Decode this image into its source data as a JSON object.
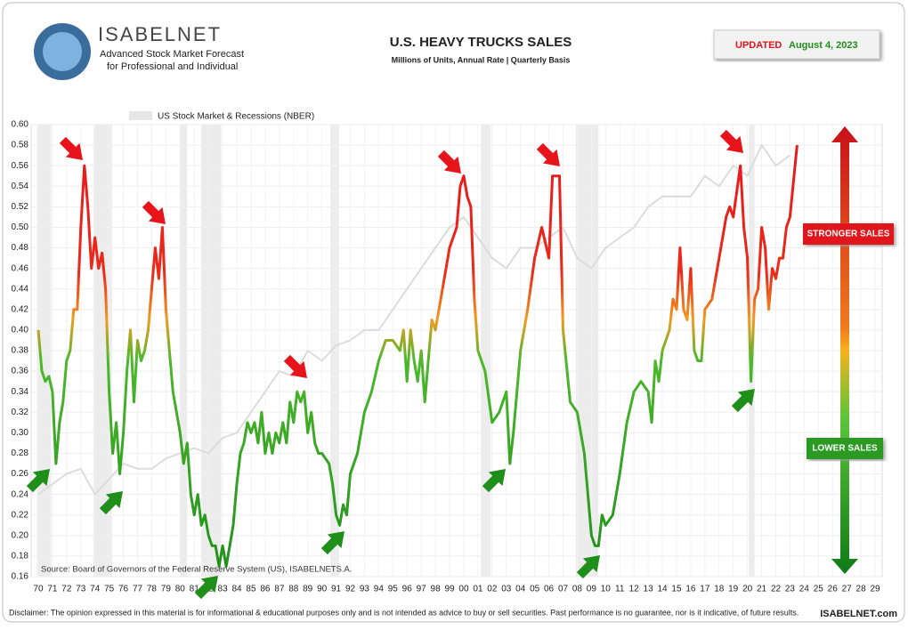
{
  "header": {
    "brand": "ISABELNET",
    "tagline1": "Advanced Stock Market Forecast",
    "tagline2": "for Professional and Individual",
    "updated_label": "UPDATED",
    "updated_date": "August 4, 2023"
  },
  "chart_data": {
    "type": "line",
    "title": "U.S. HEAVY TRUCKS SALES",
    "subtitle": "Millions of Units, Annual Rate | Quarterly Basis",
    "xlim": [
      1969.5,
      2029.5
    ],
    "ylim": [
      0.16,
      0.6
    ],
    "grid": true,
    "yticks": [
      0.16,
      0.18,
      {
        "value": 0.2,
        "label": "0.20"
      },
      0.22,
      0.24,
      0.26,
      0.28,
      {
        "value": 0.3,
        "label": "0.30"
      },
      0.32,
      0.34,
      0.36,
      0.38,
      {
        "value": 0.4,
        "label": "0.40"
      },
      0.42,
      0.44,
      0.46,
      0.48,
      {
        "value": 0.5,
        "label": "0.50"
      },
      0.52,
      0.54,
      0.56,
      0.58,
      {
        "value": 0.6,
        "label": "0.60"
      }
    ],
    "xticks": [
      {
        "value": 1970,
        "label": "70"
      },
      {
        "value": 1971,
        "label": "71"
      },
      {
        "value": 1972,
        "label": "72"
      },
      {
        "value": 1973,
        "label": "73"
      },
      {
        "value": 1974,
        "label": "74"
      },
      {
        "value": 1975,
        "label": "75"
      },
      {
        "value": 1976,
        "label": "76"
      },
      {
        "value": 1977,
        "label": "77"
      },
      {
        "value": 1978,
        "label": "78"
      },
      {
        "value": 1979,
        "label": "79"
      },
      {
        "value": 1980,
        "label": "80"
      },
      {
        "value": 1981,
        "label": "81"
      },
      {
        "value": 1982,
        "label": "82"
      },
      {
        "value": 1983,
        "label": "83"
      },
      {
        "value": 1984,
        "label": "84"
      },
      {
        "value": 1985,
        "label": "85"
      },
      {
        "value": 1986,
        "label": "86"
      },
      {
        "value": 1987,
        "label": "87"
      },
      {
        "value": 1988,
        "label": "88"
      },
      {
        "value": 1989,
        "label": "89"
      },
      {
        "value": 1990,
        "label": "90"
      },
      {
        "value": 1991,
        "label": "91"
      },
      {
        "value": 1992,
        "label": "92"
      },
      {
        "value": 1993,
        "label": "93"
      },
      {
        "value": 1994,
        "label": "94"
      },
      {
        "value": 1995,
        "label": "95"
      },
      {
        "value": 1996,
        "label": "96"
      },
      {
        "value": 1997,
        "label": "97"
      },
      {
        "value": 1998,
        "label": "98"
      },
      {
        "value": 1999,
        "label": "99"
      },
      {
        "value": 2000,
        "label": "00"
      },
      {
        "value": 2001,
        "label": "01"
      },
      {
        "value": 2002,
        "label": "02"
      },
      {
        "value": 2003,
        "label": "03"
      },
      {
        "value": 2004,
        "label": "04"
      },
      {
        "value": 2005,
        "label": "05"
      },
      {
        "value": 2006,
        "label": "06"
      },
      {
        "value": 2007,
        "label": "07"
      },
      {
        "value": 2008,
        "label": "08"
      },
      {
        "value": 2009,
        "label": "09"
      },
      {
        "value": 2010,
        "label": "10"
      },
      {
        "value": 2011,
        "label": "11"
      },
      {
        "value": 2012,
        "label": "12"
      },
      {
        "value": 2013,
        "label": "13"
      },
      {
        "value": 2014,
        "label": "14"
      },
      {
        "value": 2015,
        "label": "15"
      },
      {
        "value": 2016,
        "label": "16"
      },
      {
        "value": 2017,
        "label": "17"
      },
      {
        "value": 2018,
        "label": "18"
      },
      {
        "value": 2019,
        "label": "19"
      },
      {
        "value": 2020,
        "label": "20"
      },
      {
        "value": 2021,
        "label": "21"
      },
      {
        "value": 2022,
        "label": "22"
      },
      {
        "value": 2023,
        "label": "23"
      },
      {
        "value": 2024,
        "label": "24"
      },
      {
        "value": 2025,
        "label": "25"
      },
      {
        "value": 2026,
        "label": "26"
      },
      {
        "value": 2027,
        "label": "27"
      },
      {
        "value": 2028,
        "label": "28"
      },
      {
        "value": 2029,
        "label": "29"
      }
    ],
    "recessions": [
      [
        1969.9,
        1970.9
      ],
      [
        1973.9,
        1975.2
      ],
      [
        1980.0,
        1980.5
      ],
      [
        1981.5,
        1982.9
      ],
      [
        1990.6,
        1991.2
      ],
      [
        2001.2,
        2001.9
      ],
      [
        2007.9,
        2009.5
      ],
      [
        2020.1,
        2020.5
      ]
    ],
    "recession_color": "#ececec",
    "series": [
      {
        "color": "gradient",
        "x": [
          1970,
          1970.25,
          1970.5,
          1970.75,
          1971,
          1971.25,
          1971.5,
          1971.75,
          1972,
          1972.25,
          1972.5,
          1972.75,
          1973,
          1973.25,
          1973.5,
          1973.75,
          1974,
          1974.25,
          1974.5,
          1974.75,
          1975,
          1975.25,
          1975.5,
          1975.75,
          1976,
          1976.25,
          1976.5,
          1976.75,
          1977,
          1977.25,
          1977.5,
          1977.75,
          1978,
          1978.25,
          1978.5,
          1978.75,
          1979,
          1979.25,
          1979.5,
          1979.75,
          1980,
          1980.25,
          1980.5,
          1980.75,
          1981,
          1981.25,
          1981.5,
          1981.75,
          1982,
          1982.25,
          1982.5,
          1982.75,
          1983,
          1983.25,
          1983.5,
          1983.75,
          1984,
          1984.25,
          1984.5,
          1984.75,
          1985,
          1985.25,
          1985.5,
          1985.75,
          1986,
          1986.25,
          1986.5,
          1986.75,
          1987,
          1987.25,
          1987.5,
          1987.75,
          1988,
          1988.25,
          1988.5,
          1988.75,
          1989,
          1989.25,
          1989.5,
          1989.75,
          1990,
          1990.5,
          1990.75,
          1991,
          1991.25,
          1991.5,
          1991.75,
          1992,
          1992.5,
          1993,
          1993.5,
          1994,
          1994.5,
          1995,
          1995.5,
          1995.75,
          1996,
          1996.25,
          1996.5,
          1996.75,
          1997,
          1997.25,
          1997.5,
          1997.75,
          1998,
          1998.5,
          1999,
          1999.5,
          1999.75,
          2000,
          2000.25,
          2000.5,
          2000.75,
          2001,
          2001.5,
          2002,
          2002.5,
          2003,
          2003.25,
          2003.5,
          2004,
          2004.5,
          2005,
          2005.5,
          2006,
          2006.25,
          2006.5,
          2006.75,
          2007,
          2007.5,
          2008,
          2008.5,
          2009,
          2009.25,
          2009.5,
          2009.75,
          2010,
          2010.5,
          2011,
          2011.5,
          2012,
          2012.5,
          2013,
          2013.25,
          2013.5,
          2013.75,
          2014,
          2014.5,
          2014.75,
          2015,
          2015.25,
          2015.5,
          2015.75,
          2016,
          2016.25,
          2016.5,
          2016.75,
          2017,
          2017.5,
          2018,
          2018.5,
          2018.75,
          2019,
          2019.5,
          2019.75,
          2020,
          2020.25,
          2020.5,
          2020.75,
          2021,
          2021.25,
          2021.5,
          2021.75,
          2022,
          2022.25,
          2022.5,
          2022.75,
          2023,
          2023.5
        ],
        "values": [
          0.4,
          0.36,
          0.35,
          0.355,
          0.34,
          0.27,
          0.31,
          0.33,
          0.37,
          0.38,
          0.42,
          0.42,
          0.5,
          0.56,
          0.52,
          0.46,
          0.49,
          0.46,
          0.475,
          0.44,
          0.34,
          0.28,
          0.31,
          0.26,
          0.3,
          0.36,
          0.4,
          0.33,
          0.39,
          0.37,
          0.38,
          0.4,
          0.44,
          0.48,
          0.45,
          0.5,
          0.42,
          0.38,
          0.34,
          0.32,
          0.3,
          0.27,
          0.29,
          0.24,
          0.22,
          0.24,
          0.21,
          0.22,
          0.2,
          0.19,
          0.19,
          0.17,
          0.19,
          0.17,
          0.19,
          0.21,
          0.25,
          0.28,
          0.29,
          0.31,
          0.3,
          0.31,
          0.29,
          0.32,
          0.28,
          0.3,
          0.28,
          0.3,
          0.29,
          0.31,
          0.29,
          0.33,
          0.31,
          0.34,
          0.33,
          0.34,
          0.3,
          0.32,
          0.29,
          0.28,
          0.28,
          0.27,
          0.25,
          0.22,
          0.21,
          0.23,
          0.22,
          0.26,
          0.28,
          0.32,
          0.34,
          0.37,
          0.39,
          0.39,
          0.38,
          0.4,
          0.35,
          0.4,
          0.37,
          0.35,
          0.38,
          0.33,
          0.37,
          0.41,
          0.4,
          0.44,
          0.48,
          0.5,
          0.54,
          0.55,
          0.53,
          0.52,
          0.43,
          0.38,
          0.36,
          0.31,
          0.32,
          0.34,
          0.27,
          0.3,
          0.38,
          0.42,
          0.47,
          0.5,
          0.47,
          0.55,
          0.55,
          0.55,
          0.4,
          0.33,
          0.32,
          0.28,
          0.2,
          0.19,
          0.19,
          0.22,
          0.21,
          0.22,
          0.26,
          0.31,
          0.34,
          0.35,
          0.34,
          0.31,
          0.37,
          0.35,
          0.38,
          0.4,
          0.43,
          0.42,
          0.48,
          0.42,
          0.41,
          0.46,
          0.38,
          0.37,
          0.37,
          0.42,
          0.43,
          0.47,
          0.51,
          0.52,
          0.51,
          0.56,
          0.5,
          0.47,
          0.35,
          0.43,
          0.44,
          0.5,
          0.48,
          0.42,
          0.46,
          0.45,
          0.47,
          0.47,
          0.5,
          0.51,
          0.58
        ]
      },
      {
        "name": "US Stock Market & Recessions (NBER)",
        "color": "#dcdcdc",
        "x": [
          1970,
          1971,
          1972,
          1973,
          1974,
          1975,
          1976,
          1977,
          1978,
          1979,
          1980,
          1981,
          1982,
          1983,
          1984,
          1985,
          1986,
          1987,
          1988,
          1989,
          1990,
          1991,
          1992,
          1993,
          1994,
          1995,
          1996,
          1997,
          1998,
          1999,
          2000,
          2001,
          2002,
          2003,
          2004,
          2005,
          2006,
          2007,
          2008,
          2009,
          2010,
          2011,
          2012,
          2013,
          2014,
          2015,
          2016,
          2017,
          2018,
          2019,
          2020,
          2021,
          2022,
          2023
        ],
        "values": [
          0.24,
          0.25,
          0.26,
          0.265,
          0.24,
          0.255,
          0.27,
          0.265,
          0.265,
          0.275,
          0.28,
          0.285,
          0.28,
          0.295,
          0.3,
          0.32,
          0.34,
          0.36,
          0.355,
          0.38,
          0.37,
          0.385,
          0.39,
          0.4,
          0.4,
          0.42,
          0.44,
          0.46,
          0.48,
          0.5,
          0.51,
          0.49,
          0.47,
          0.46,
          0.48,
          0.48,
          0.49,
          0.5,
          0.47,
          0.46,
          0.48,
          0.49,
          0.5,
          0.52,
          0.53,
          0.53,
          0.53,
          0.55,
          0.54,
          0.56,
          0.55,
          0.58,
          0.56,
          0.57
        ]
      }
    ],
    "scale_high": "STRONGER SALES",
    "scale_low": "LOWER SALES",
    "source": "Source: Board of Governors of the Federal Reserve System (US), ISABELNETS.A.",
    "disclaimer": "Disclaimer: The opinion expressed in this material is for informational & educational purposes only and is not intended as advice to buy or sell securities. Past performance is no guarantee, nor is it indicative, of future results.",
    "site": "ISABELNET.com"
  }
}
